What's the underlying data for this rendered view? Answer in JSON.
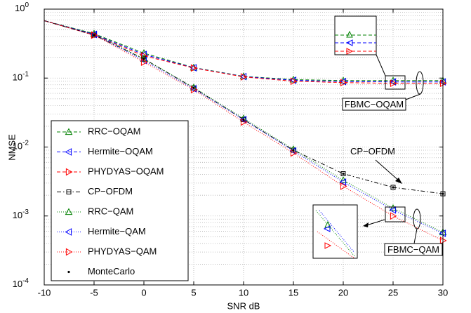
{
  "chart_data": {
    "type": "line",
    "xlabel": "SNR dB",
    "ylabel": "NMSE",
    "log_y": true,
    "grid": true,
    "minor_grid": true,
    "x": [
      -10,
      -5,
      0,
      5,
      10,
      15,
      20,
      25,
      30
    ],
    "xlim": [
      -10,
      30
    ],
    "xticks": [
      -10,
      -5,
      0,
      5,
      10,
      15,
      20,
      25,
      30
    ],
    "ylim": [
      0.0001,
      1
    ],
    "yticks": [
      {
        "value": 0.0001,
        "label": "10^-4"
      },
      {
        "value": 0.001,
        "label": "10^-3"
      },
      {
        "value": 0.01,
        "label": "10^-2"
      },
      {
        "value": 0.1,
        "label": "10^-1"
      },
      {
        "value": 1,
        "label": "10^0"
      }
    ],
    "legend": "lower-left",
    "series": [
      {
        "name": "RRC−OQAM",
        "color": "#008000",
        "dash": "dashed",
        "marker": "triangle-up",
        "values": [
          0.68,
          0.44,
          0.23,
          0.142,
          0.106,
          0.095,
          0.092,
          0.092,
          0.092
        ]
      },
      {
        "name": "Hermite−OQAM",
        "color": "#0000ff",
        "dash": "dashed",
        "marker": "triangle-left",
        "values": [
          0.68,
          0.43,
          0.22,
          0.141,
          0.105,
          0.093,
          0.089,
          0.088,
          0.088
        ]
      },
      {
        "name": "PHYDYAS−OQAM",
        "color": "#ff0000",
        "dash": "dashed",
        "marker": "triangle-right",
        "values": [
          0.68,
          0.42,
          0.21,
          0.14,
          0.104,
          0.09,
          0.086,
          0.084,
          0.084
        ]
      },
      {
        "name": "CP−OFDM",
        "color": "#000000",
        "dash": "dashdot",
        "marker": "square",
        "values": [
          0.68,
          0.42,
          0.19,
          0.072,
          0.025,
          0.009,
          0.0041,
          0.0026,
          0.0021
        ]
      },
      {
        "name": "RRC−QAM",
        "color": "#008000",
        "dash": "dotted",
        "marker": "triangle-up",
        "values": [
          0.68,
          0.44,
          0.19,
          0.073,
          0.026,
          0.0093,
          0.0033,
          0.0013,
          0.00058
        ]
      },
      {
        "name": "Hermite−QAM",
        "color": "#0000ff",
        "dash": "dotted",
        "marker": "triangle-left",
        "values": [
          0.68,
          0.43,
          0.18,
          0.07,
          0.025,
          0.0088,
          0.0031,
          0.00122,
          0.00056
        ]
      },
      {
        "name": "PHYDYAS−QAM",
        "color": "#ff0000",
        "dash": "dotted",
        "marker": "triangle-right",
        "values": [
          0.68,
          0.42,
          0.17,
          0.068,
          0.023,
          0.0082,
          0.0027,
          0.001,
          0.00044
        ]
      },
      {
        "name": "MonteCarlo",
        "color": "#000000",
        "dash": "none",
        "marker": "dot",
        "values": [
          0.68,
          0.42,
          0.19,
          0.072,
          0.025,
          0.009,
          0.0041,
          0.0026,
          0.0021
        ]
      }
    ],
    "annotations": [
      "FBMC−OQAM",
      "CP−OFDM",
      "FBMC−QAM"
    ]
  }
}
